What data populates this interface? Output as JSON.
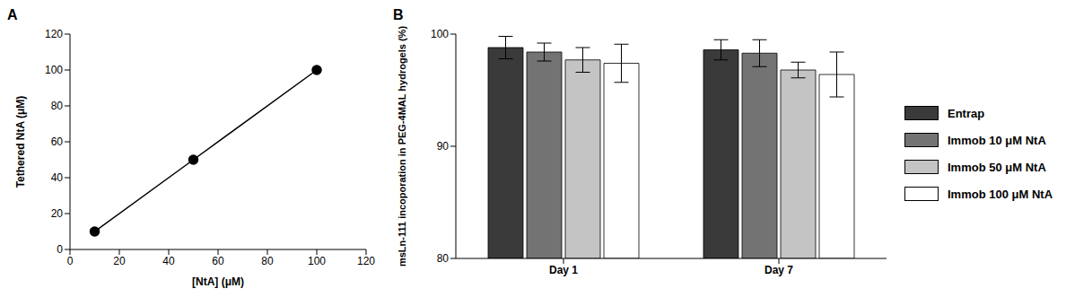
{
  "chart_data": [
    {
      "type": "line",
      "title": "A",
      "x_label": "[NtA] (μM)",
      "y_label": "Tethered NtA (μM)",
      "x": [
        10,
        50,
        100
      ],
      "values": [
        10,
        50,
        100
      ],
      "color": "#000000",
      "marker": "circle",
      "line_style": "solid",
      "xlim": [
        0,
        120
      ],
      "xticks": [
        0,
        20,
        40,
        60,
        80,
        100,
        120
      ],
      "ylim": [
        0,
        120
      ],
      "yticks": [
        0,
        20,
        40,
        60,
        80,
        100,
        120
      ],
      "grid": false
    },
    {
      "type": "bar",
      "title": "B",
      "y_label": "msLn-111 incoporation in PEG-4MAL hydrogels (%)",
      "categories": [
        "Day 1",
        "Day 7"
      ],
      "series": [
        {
          "name": "Entrap",
          "color": "#3a3a3a",
          "values": [
            98.8,
            98.6
          ],
          "errors": [
            1.0,
            0.9
          ]
        },
        {
          "name": "Immob 10 μM NtA",
          "color": "#737373",
          "values": [
            98.4,
            98.3
          ],
          "errors": [
            0.8,
            1.2
          ]
        },
        {
          "name": "Immob 50 μM NtA",
          "color": "#c4c4c4",
          "values": [
            97.7,
            96.8
          ],
          "errors": [
            1.1,
            0.7
          ]
        },
        {
          "name": "Immob 100 μM NtA",
          "color": "#ffffff",
          "values": [
            97.4,
            96.4
          ],
          "errors": [
            1.7,
            2.0
          ]
        }
      ],
      "ylim": [
        80,
        100
      ],
      "yticks": [
        80,
        90,
        100
      ],
      "grid": false,
      "legend": "right"
    }
  ]
}
